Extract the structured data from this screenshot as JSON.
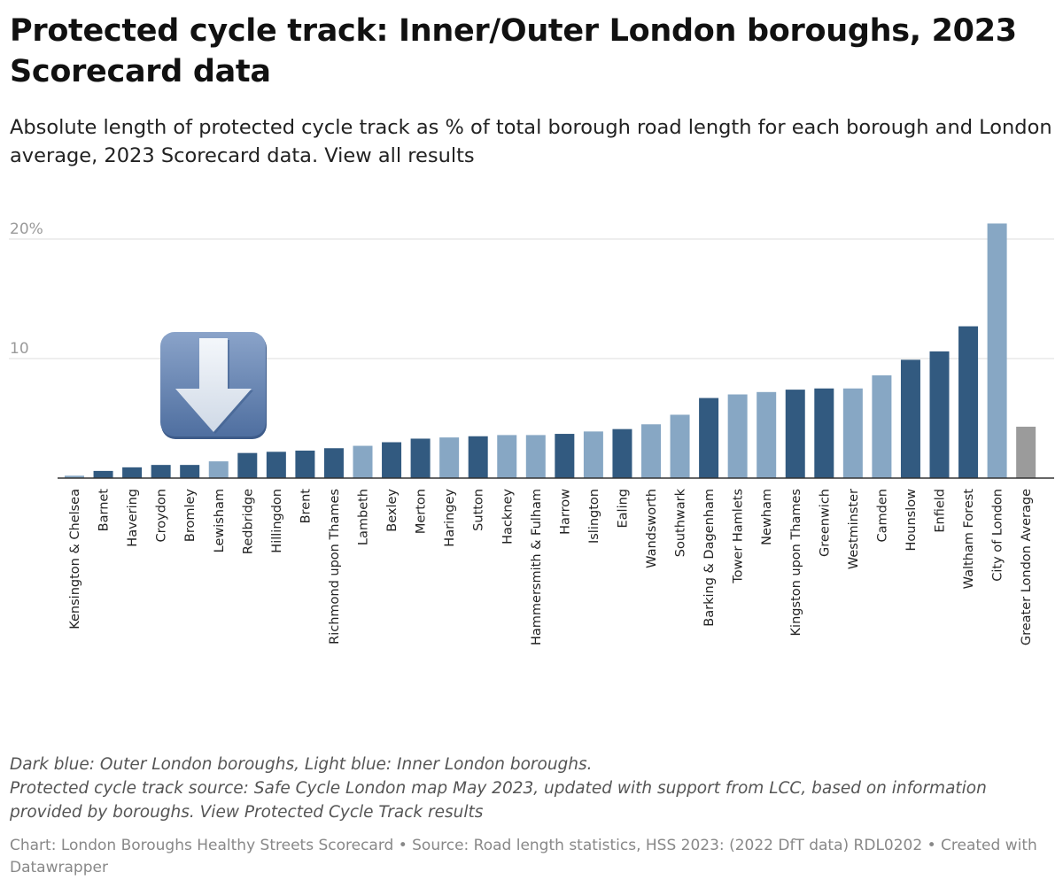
{
  "header": {
    "title": "Protected cycle track: Inner/Outer London boroughs, 2023 Scorecard data",
    "subtitle": "Absolute length of protected cycle track as % of total borough road length for each borough and London average, 2023 Scorecard data. View all results"
  },
  "notes": {
    "legend_note": "Dark blue: Outer London boroughs, Light blue: Inner London boroughs.",
    "source_note": "Protected cycle track source: Safe Cycle London map May 2023, updated with support from LCC, based on information provided by boroughs. View Protected Cycle Track results"
  },
  "footer": {
    "credit": "Chart: London Boroughs Healthy Streets Scorecard • Source: Road length statistics, HSS 2023: (2022 DfT data) RDL0202 • Created with Datawrapper"
  },
  "colors": {
    "outer": "#325a80",
    "inner": "#87a7c4",
    "average": "#9b9b9b",
    "grid": "#dedede",
    "baseline": "#333333"
  },
  "icon": {
    "name": "down-arrow-icon"
  },
  "chart_data": {
    "type": "bar",
    "xlabel": "",
    "ylabel": "",
    "ylim": [
      0,
      21.5
    ],
    "grid": true,
    "yticks": [
      {
        "value": 10,
        "label": "10"
      },
      {
        "value": 20,
        "label": "20%"
      }
    ],
    "categories": [
      "Kensington & Chelsea",
      "Barnet",
      "Havering",
      "Croydon",
      "Bromley",
      "Lewisham",
      "Redbridge",
      "Hillingdon",
      "Brent",
      "Richmond upon Thames",
      "Lambeth",
      "Bexley",
      "Merton",
      "Haringey",
      "Sutton",
      "Hackney",
      "Hammersmith & Fulham",
      "Harrow",
      "Islington",
      "Ealing",
      "Wandsworth",
      "Southwark",
      "Barking & Dagenham",
      "Tower Hamlets",
      "Newham",
      "Kingston upon Thames",
      "Greenwich",
      "Westminster",
      "Camden",
      "Hounslow",
      "Enfield",
      "Waltham Forest",
      "City of London",
      "Greater London Average"
    ],
    "values": [
      0.2,
      0.6,
      0.9,
      1.1,
      1.1,
      1.4,
      2.1,
      2.2,
      2.3,
      2.5,
      2.7,
      3.0,
      3.3,
      3.4,
      3.5,
      3.6,
      3.6,
      3.7,
      3.9,
      4.1,
      4.5,
      5.3,
      6.7,
      7.0,
      7.2,
      7.4,
      7.5,
      7.5,
      8.6,
      9.9,
      10.6,
      12.7,
      21.3,
      4.3
    ],
    "groups": [
      "inner",
      "outer",
      "outer",
      "outer",
      "outer",
      "inner",
      "outer",
      "outer",
      "outer",
      "outer",
      "inner",
      "outer",
      "outer",
      "inner",
      "outer",
      "inner",
      "inner",
      "outer",
      "inner",
      "outer",
      "inner",
      "inner",
      "outer",
      "inner",
      "inner",
      "outer",
      "outer",
      "inner",
      "inner",
      "outer",
      "outer",
      "outer",
      "inner",
      "average"
    ]
  }
}
